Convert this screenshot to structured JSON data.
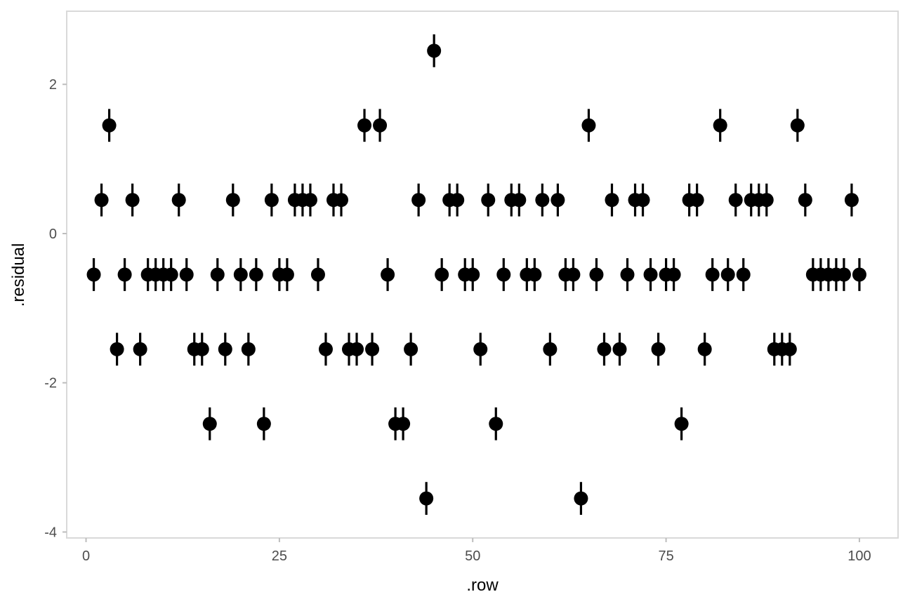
{
  "chart_data": {
    "type": "scatter",
    "title": "",
    "xlabel": ".row",
    "ylabel": ".residual",
    "xlim": [
      -2.5,
      105
    ],
    "ylim": [
      -4.08,
      2.98
    ],
    "x_ticks": [
      0,
      25,
      50,
      75,
      100
    ],
    "y_ticks": [
      -4,
      -2,
      0,
      2
    ],
    "grid": false,
    "legend": "none",
    "error_bar_half_height": 0.22,
    "colors": {
      "point": "#000000",
      "panel_border": "#d9d9d9",
      "tick": "#bdbdbd"
    },
    "points": [
      {
        "x": 1,
        "y": -0.55
      },
      {
        "x": 2,
        "y": 0.45
      },
      {
        "x": 3,
        "y": 1.45
      },
      {
        "x": 4,
        "y": -1.55
      },
      {
        "x": 5,
        "y": -0.55
      },
      {
        "x": 6,
        "y": 0.45
      },
      {
        "x": 7,
        "y": -1.55
      },
      {
        "x": 8,
        "y": -0.55
      },
      {
        "x": 9,
        "y": -0.55
      },
      {
        "x": 10,
        "y": -0.55
      },
      {
        "x": 11,
        "y": -0.55
      },
      {
        "x": 12,
        "y": 0.45
      },
      {
        "x": 13,
        "y": -0.55
      },
      {
        "x": 14,
        "y": -1.55
      },
      {
        "x": 15,
        "y": -1.55
      },
      {
        "x": 16,
        "y": -2.55
      },
      {
        "x": 17,
        "y": -0.55
      },
      {
        "x": 18,
        "y": -1.55
      },
      {
        "x": 19,
        "y": 0.45
      },
      {
        "x": 20,
        "y": -0.55
      },
      {
        "x": 21,
        "y": -1.55
      },
      {
        "x": 22,
        "y": -0.55
      },
      {
        "x": 23,
        "y": -2.55
      },
      {
        "x": 24,
        "y": 0.45
      },
      {
        "x": 25,
        "y": -0.55
      },
      {
        "x": 26,
        "y": -0.55
      },
      {
        "x": 27,
        "y": 0.45
      },
      {
        "x": 28,
        "y": 0.45
      },
      {
        "x": 29,
        "y": 0.45
      },
      {
        "x": 30,
        "y": -0.55
      },
      {
        "x": 31,
        "y": -1.55
      },
      {
        "x": 32,
        "y": 0.45
      },
      {
        "x": 33,
        "y": 0.45
      },
      {
        "x": 34,
        "y": -1.55
      },
      {
        "x": 35,
        "y": -1.55
      },
      {
        "x": 36,
        "y": 1.45
      },
      {
        "x": 37,
        "y": -1.55
      },
      {
        "x": 38,
        "y": 1.45
      },
      {
        "x": 39,
        "y": -0.55
      },
      {
        "x": 40,
        "y": -2.55
      },
      {
        "x": 41,
        "y": -2.55
      },
      {
        "x": 42,
        "y": -1.55
      },
      {
        "x": 43,
        "y": 0.45
      },
      {
        "x": 44,
        "y": -3.55
      },
      {
        "x": 45,
        "y": 2.45
      },
      {
        "x": 46,
        "y": -0.55
      },
      {
        "x": 47,
        "y": 0.45
      },
      {
        "x": 48,
        "y": 0.45
      },
      {
        "x": 49,
        "y": -0.55
      },
      {
        "x": 50,
        "y": -0.55
      },
      {
        "x": 51,
        "y": -1.55
      },
      {
        "x": 52,
        "y": 0.45
      },
      {
        "x": 53,
        "y": -2.55
      },
      {
        "x": 54,
        "y": -0.55
      },
      {
        "x": 55,
        "y": 0.45
      },
      {
        "x": 56,
        "y": 0.45
      },
      {
        "x": 57,
        "y": -0.55
      },
      {
        "x": 58,
        "y": -0.55
      },
      {
        "x": 59,
        "y": 0.45
      },
      {
        "x": 60,
        "y": -1.55
      },
      {
        "x": 61,
        "y": 0.45
      },
      {
        "x": 62,
        "y": -0.55
      },
      {
        "x": 63,
        "y": -0.55
      },
      {
        "x": 64,
        "y": -3.55
      },
      {
        "x": 65,
        "y": 1.45
      },
      {
        "x": 66,
        "y": -0.55
      },
      {
        "x": 67,
        "y": -1.55
      },
      {
        "x": 68,
        "y": 0.45
      },
      {
        "x": 69,
        "y": -1.55
      },
      {
        "x": 70,
        "y": -0.55
      },
      {
        "x": 71,
        "y": 0.45
      },
      {
        "x": 72,
        "y": 0.45
      },
      {
        "x": 73,
        "y": -0.55
      },
      {
        "x": 74,
        "y": -1.55
      },
      {
        "x": 75,
        "y": -0.55
      },
      {
        "x": 76,
        "y": -0.55
      },
      {
        "x": 77,
        "y": -2.55
      },
      {
        "x": 78,
        "y": 0.45
      },
      {
        "x": 79,
        "y": 0.45
      },
      {
        "x": 80,
        "y": -1.55
      },
      {
        "x": 81,
        "y": -0.55
      },
      {
        "x": 82,
        "y": 1.45
      },
      {
        "x": 83,
        "y": -0.55
      },
      {
        "x": 84,
        "y": 0.45
      },
      {
        "x": 85,
        "y": -0.55
      },
      {
        "x": 86,
        "y": 0.45
      },
      {
        "x": 87,
        "y": 0.45
      },
      {
        "x": 88,
        "y": 0.45
      },
      {
        "x": 89,
        "y": -1.55
      },
      {
        "x": 90,
        "y": -1.55
      },
      {
        "x": 91,
        "y": -1.55
      },
      {
        "x": 92,
        "y": 1.45
      },
      {
        "x": 93,
        "y": 0.45
      },
      {
        "x": 94,
        "y": -0.55
      },
      {
        "x": 95,
        "y": -0.55
      },
      {
        "x": 96,
        "y": -0.55
      },
      {
        "x": 97,
        "y": -0.55
      },
      {
        "x": 98,
        "y": -0.55
      },
      {
        "x": 99,
        "y": 0.45
      },
      {
        "x": 100,
        "y": -0.55
      }
    ]
  }
}
